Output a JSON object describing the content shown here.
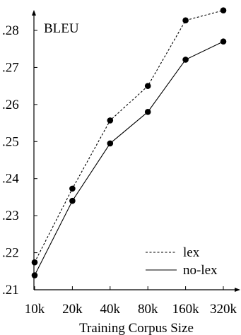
{
  "chart_data": {
    "type": "line",
    "ylabel": "BLEU",
    "xlabel": "Training Corpus Size",
    "categories": [
      "10k",
      "20k",
      "40k",
      "80k",
      "160k",
      "320k"
    ],
    "ylim": [
      0.21,
      0.28
    ],
    "yticks": [
      ".21",
      ".22",
      ".23",
      ".24",
      ".25",
      ".26",
      ".27",
      ".28"
    ],
    "ytick_values": [
      0.21,
      0.22,
      0.23,
      0.24,
      0.25,
      0.26,
      0.27,
      0.28
    ],
    "series": [
      {
        "name": "lex",
        "style": "dotted",
        "values": [
          0.2174,
          0.2373,
          0.2557,
          0.265,
          0.2827,
          0.2854
        ]
      },
      {
        "name": "no-lex",
        "style": "solid",
        "values": [
          0.2139,
          0.234,
          0.2495,
          0.258,
          0.2721,
          0.277
        ]
      }
    ],
    "legend_position": "bottom-right",
    "grid": false
  },
  "colors": {
    "line": "#000000",
    "background": "#ffffff"
  }
}
